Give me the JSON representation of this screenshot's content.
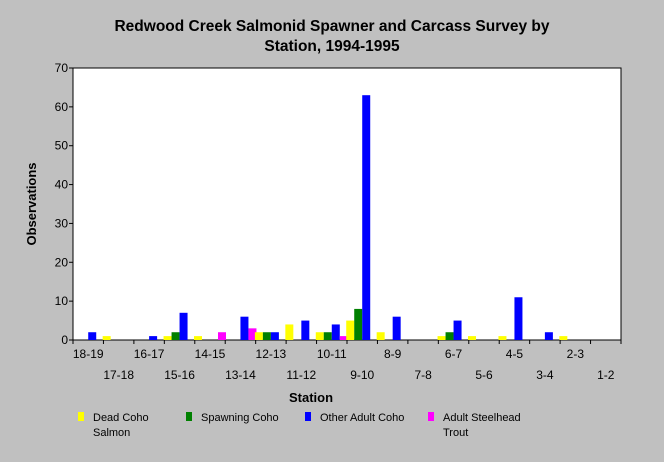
{
  "chart_data": {
    "type": "bar",
    "title_lines": [
      "Redwood Creek Salmonid Spawner and Carcass Survey by",
      "Station, 1994-1995"
    ],
    "xlabel": "Station",
    "ylabel": "Observations",
    "ylim": [
      0,
      70
    ],
    "yticks": [
      0,
      10,
      20,
      30,
      40,
      50,
      60,
      70
    ],
    "grid": false,
    "legend_position": "bottom",
    "categories": [
      "18-19",
      "17-18",
      "16-17",
      "15-16",
      "14-15",
      "13-14",
      "12-13",
      "11-12",
      "10-11",
      "9-10",
      "8-9",
      "7-8",
      "6-7",
      "5-6",
      "4-5",
      "3-4",
      "2-3",
      "1-2"
    ],
    "series": [
      {
        "name_lines": [
          "Dead Coho",
          "Salmon"
        ],
        "color": "#ffff00",
        "values": [
          0,
          1,
          0,
          1,
          1,
          0,
          2,
          4,
          2,
          5,
          2,
          0,
          1,
          1,
          1,
          0,
          1,
          0
        ]
      },
      {
        "name_lines": [
          "Spawning Coho"
        ],
        "color": "#008000",
        "values": [
          0,
          0,
          0,
          2,
          0,
          0,
          2,
          0,
          2,
          8,
          0,
          0,
          2,
          0,
          0,
          0,
          0,
          0
        ]
      },
      {
        "name_lines": [
          "Other Adult Coho"
        ],
        "color": "#0000ff",
        "values": [
          2,
          0,
          1,
          7,
          0,
          6,
          2,
          5,
          4,
          63,
          6,
          0,
          5,
          0,
          11,
          2,
          0,
          0
        ]
      },
      {
        "name_lines": [
          "Adult Steelhead",
          "Trout"
        ],
        "color": "#ff00ff",
        "values": [
          0,
          0,
          0,
          0,
          2,
          3,
          0,
          0,
          1,
          0,
          0,
          0,
          0,
          0,
          0,
          0,
          0,
          0
        ]
      }
    ]
  }
}
